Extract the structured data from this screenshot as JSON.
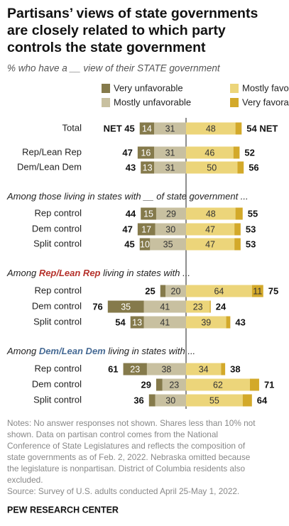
{
  "chart_data": {
    "type": "diverging",
    "title": [
      "Partisans’ views of state governments",
      "are closely related to which party",
      "controls the state government"
    ],
    "subtitle": "% who have a __ view of their STATE government",
    "categories": [
      "Total",
      "Rep/Lean Rep",
      "Dem/Lean Dem",
      "Rep control",
      "Dem control",
      "Split control",
      "Rep control",
      "Dem control",
      "Split control",
      "Rep control",
      "Dem control",
      "Split control"
    ],
    "series": [
      {
        "name": "Very unfavorable",
        "color": "#857a4b",
        "side": "left",
        "values": [
          14,
          16,
          13,
          15,
          17,
          10,
          5,
          35,
          13,
          23,
          6,
          6
        ],
        "value_labels": [
          "14",
          "16",
          "13",
          "15",
          "17",
          "10",
          null,
          "35",
          "13",
          "23",
          null,
          null
        ]
      },
      {
        "name": "Mostly unfavorable",
        "color": "#c8c0a0",
        "side": "left",
        "values": [
          31,
          31,
          31,
          29,
          30,
          35,
          20,
          41,
          41,
          38,
          23,
          30
        ],
        "value_labels": [
          "31",
          "31",
          "31",
          "29",
          "30",
          "35",
          "20",
          "41",
          "41",
          "38",
          "23",
          "30"
        ]
      },
      {
        "name": "Mostly favorable",
        "color": "#ecd57a",
        "side": "right",
        "values": [
          48,
          46,
          50,
          48,
          47,
          47,
          64,
          23,
          39,
          34,
          62,
          55
        ],
        "value_labels": [
          "48",
          "46",
          "50",
          "48",
          "47",
          "47",
          "64",
          "23",
          "39",
          "34",
          "62",
          "55"
        ]
      },
      {
        "name": "Very favorable",
        "color": "#d3a92a",
        "side": "right",
        "values": [
          6,
          6,
          6,
          7,
          6,
          6,
          11,
          1,
          4,
          4,
          9,
          9
        ],
        "value_labels": [
          null,
          null,
          null,
          null,
          null,
          null,
          "11",
          null,
          null,
          null,
          null,
          null
        ]
      }
    ],
    "net_unfavorable": {
      "values": [
        45,
        47,
        43,
        44,
        47,
        45,
        25,
        76,
        54,
        61,
        29,
        36
      ],
      "value_labels": [
        "NET 45",
        "47",
        "43",
        "44",
        "47",
        "45",
        "25",
        "76",
        "54",
        "61",
        "29",
        "36"
      ]
    },
    "net_favorable": {
      "values": [
        54,
        52,
        56,
        55,
        53,
        53,
        75,
        24,
        43,
        38,
        71,
        64
      ],
      "value_labels": [
        "54 NET",
        "52",
        "56",
        "55",
        "53",
        "53",
        "75",
        "24",
        "43",
        "38",
        "71",
        "64"
      ]
    },
    "sections": [
      {
        "prefix": "Among those living in states with __ of state government ...",
        "highlight": null,
        "suffix": null,
        "color": null
      },
      {
        "prefix": "Among ",
        "highlight": "Rep/Lean Rep",
        "suffix": " living in states with ...",
        "color": "#b5312b"
      },
      {
        "prefix": "Among ",
        "highlight": "Dem/Lean Dem",
        "suffix": " living in states with ...",
        "color": "#466a94"
      }
    ],
    "notes": [
      "Notes: No answer responses not shown. Shares less than 10% not",
      "shown. Data on partisan control comes from the National",
      "Conference of State Legislatures and reflects the composition of",
      "state governments as of Feb. 2, 2022. Nebraska omitted because",
      "the legislature is nonpartisan. District of Columbia residents also",
      "excluded."
    ],
    "source": "Source: Survey of U.S. adults conducted April 25-May 1, 2022.",
    "credit": "PEW RESEARCH CENTER"
  }
}
